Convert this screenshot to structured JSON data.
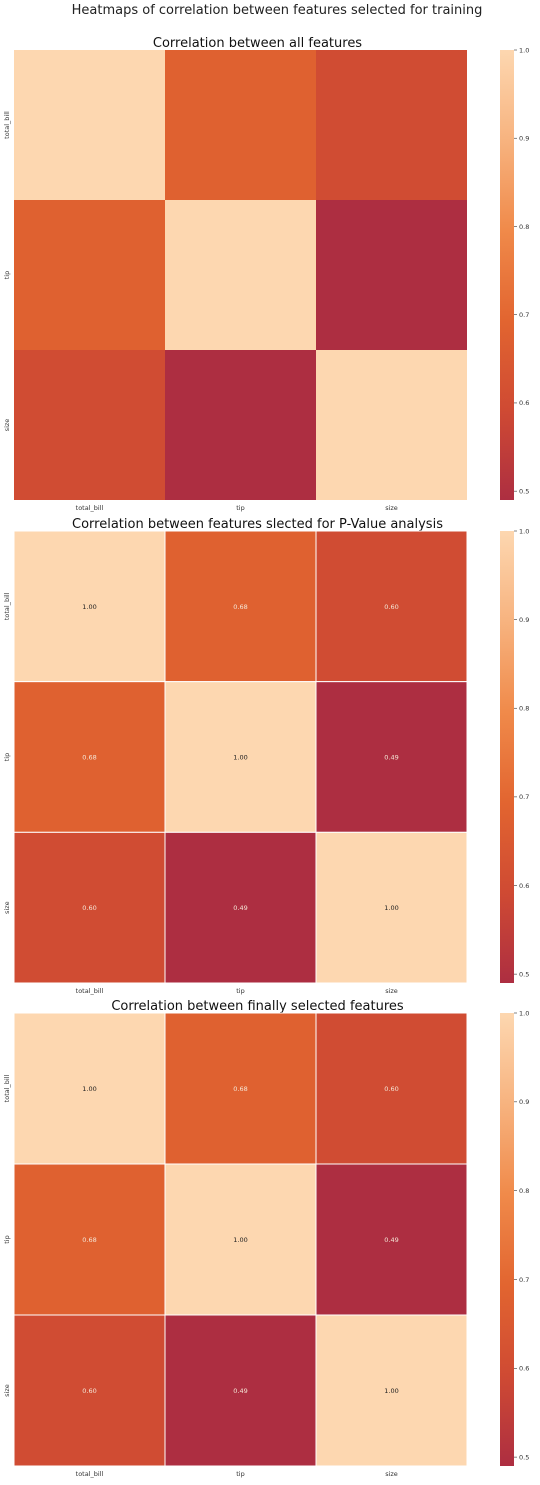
{
  "figure": {
    "suptitle": "Heatmaps of correlation between features selected for training"
  },
  "chart_data": [
    {
      "type": "heatmap",
      "title": "Correlation between all features",
      "x_labels": [
        "total_bill",
        "tip",
        "size"
      ],
      "y_labels": [
        "total_bill",
        "tip",
        "size"
      ],
      "values": [
        [
          1.0,
          0.68,
          0.6
        ],
        [
          0.68,
          1.0,
          0.49
        ],
        [
          0.6,
          0.49,
          1.0
        ]
      ],
      "annotated": false,
      "cell_borders": false,
      "colorbar": {
        "range": [
          0.49,
          1.0
        ],
        "ticks": [
          "0.5",
          "0.6",
          "0.7",
          "0.8",
          "0.9",
          "1.0"
        ]
      }
    },
    {
      "type": "heatmap",
      "title": "Correlation between features slected for P-Value analysis",
      "x_labels": [
        "total_bill",
        "tip",
        "size"
      ],
      "y_labels": [
        "total_bill",
        "tip",
        "size"
      ],
      "values": [
        [
          1.0,
          0.68,
          0.6
        ],
        [
          0.68,
          1.0,
          0.49
        ],
        [
          0.6,
          0.49,
          1.0
        ]
      ],
      "annotations": [
        [
          "1.00",
          "0.68",
          "0.60"
        ],
        [
          "0.68",
          "1.00",
          "0.49"
        ],
        [
          "0.60",
          "0.49",
          "1.00"
        ]
      ],
      "annotated": true,
      "cell_borders": true,
      "colorbar": {
        "range": [
          0.49,
          1.0
        ],
        "ticks": [
          "0.5",
          "0.6",
          "0.7",
          "0.8",
          "0.9",
          "1.0"
        ]
      }
    },
    {
      "type": "heatmap",
      "title": "Correlation between finally selected features",
      "x_labels": [
        "total_bill",
        "tip",
        "size"
      ],
      "y_labels": [
        "total_bill",
        "tip",
        "size"
      ],
      "values": [
        [
          1.0,
          0.68,
          0.6
        ],
        [
          0.68,
          1.0,
          0.49
        ],
        [
          0.6,
          0.49,
          1.0
        ]
      ],
      "annotations": [
        [
          "1.00",
          "0.68",
          "0.60"
        ],
        [
          "0.68",
          "1.00",
          "0.49"
        ],
        [
          "0.60",
          "0.49",
          "1.00"
        ]
      ],
      "annotated": true,
      "cell_borders": true,
      "colorbar": {
        "range": [
          0.49,
          1.0
        ],
        "ticks": [
          "0.5",
          "0.6",
          "0.7",
          "0.8",
          "0.9",
          "1.0"
        ]
      }
    }
  ]
}
